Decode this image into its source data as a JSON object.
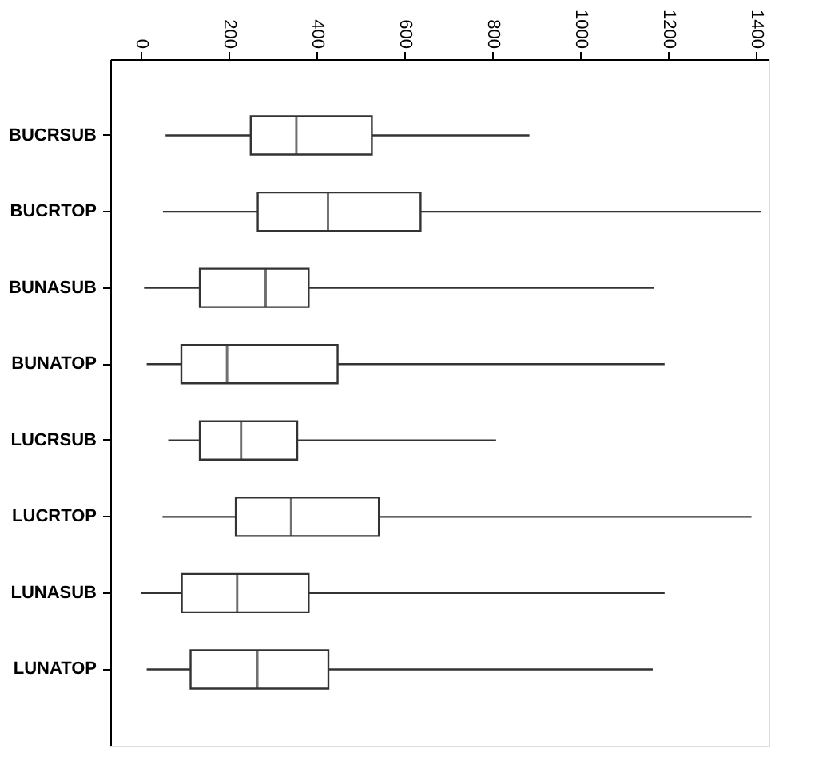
{
  "chart_data": {
    "type": "box",
    "orientation": "horizontal",
    "categories": [
      "BUCRSUB",
      "BUCRTOP",
      "BUNASUB",
      "BUNATOP",
      "LUCRSUB",
      "LUCRTOP",
      "LUNASUB",
      "LUNATOP"
    ],
    "boxes": [
      {
        "low": 56,
        "q1": 250,
        "median": 354,
        "q3": 526,
        "high": 885
      },
      {
        "low": 50,
        "q1": 266,
        "median": 426,
        "q3": 637,
        "high": 1412
      },
      {
        "low": 7,
        "q1": 134,
        "median": 284,
        "q3": 382,
        "high": 1169
      },
      {
        "low": 13,
        "q1": 92,
        "median": 196,
        "q3": 448,
        "high": 1193
      },
      {
        "low": 62,
        "q1": 134,
        "median": 228,
        "q3": 356,
        "high": 809
      },
      {
        "low": 49,
        "q1": 216,
        "median": 342,
        "q3": 542,
        "high": 1391
      },
      {
        "low": 0,
        "q1": 93,
        "median": 219,
        "q3": 382,
        "high": 1193
      },
      {
        "low": 13,
        "q1": 113,
        "median": 265,
        "q3": 427,
        "high": 1166
      }
    ],
    "color": "#333333",
    "xlim": [
      -70,
      1430
    ],
    "xticks": [
      0,
      200,
      400,
      600,
      800,
      1000,
      1200,
      1400
    ],
    "grid": false
  }
}
